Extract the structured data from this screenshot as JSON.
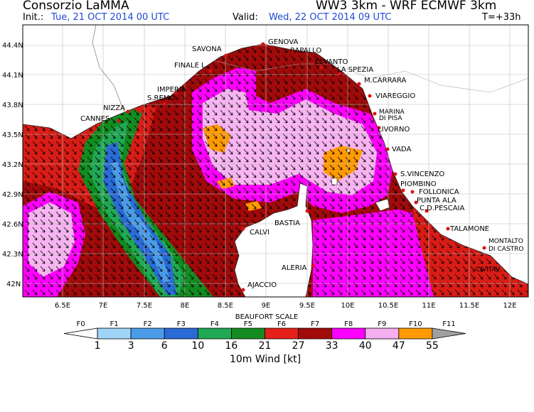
{
  "header": {
    "title_left": "Consorzio LaMMA",
    "init_label": "Init.:",
    "init_value": "Tue, 21 OCT 2014  00 UTC",
    "title_right": "WW3 3km - WRF ECMWF 3km",
    "valid_label": "Valid:",
    "valid_value": "Wed, 22 OCT 2014  09 UTC",
    "forecast_step": "T=+33h"
  },
  "map": {
    "lat_labels": [
      "44.4N",
      "44.1N",
      "43.8N",
      "43.5N",
      "43.2N",
      "42.9N",
      "42.6N",
      "42.3N",
      "42N"
    ],
    "lon_labels": [
      "6.5E",
      "7E",
      "7.5E",
      "8E",
      "8.5E",
      "9E",
      "9.5E",
      "10E",
      "10.5E",
      "11E",
      "11.5E",
      "12E"
    ],
    "places": [
      {
        "name": "GENOVA"
      },
      {
        "name": "RAPALLO"
      },
      {
        "name": "SAVONA"
      },
      {
        "name": "LEVANTO"
      },
      {
        "name": "LA SPEZIA"
      },
      {
        "name": "FINALE L."
      },
      {
        "name": "M.CARRARA"
      },
      {
        "name": "IMPERIA"
      },
      {
        "name": "S.REMO"
      },
      {
        "name": "VIAREGGIO"
      },
      {
        "name": "NIZZA"
      },
      {
        "name": "MARINA"
      },
      {
        "name": "DI PISA"
      },
      {
        "name": "CANNES"
      },
      {
        "name": "LIVORNO"
      },
      {
        "name": "VADA"
      },
      {
        "name": "S.VINCENZO"
      },
      {
        "name": "PIOMBINO"
      },
      {
        "name": "FOLLONICA"
      },
      {
        "name": "PUNTA ALA"
      },
      {
        "name": "C.D.PESCAIA"
      },
      {
        "name": "BASTIA"
      },
      {
        "name": "CALVI"
      },
      {
        "name": "TALAMONE"
      },
      {
        "name": "MONTALTO"
      },
      {
        "name": "DI CASTRO"
      },
      {
        "name": "ALERIA"
      },
      {
        "name": "CIVITAV."
      },
      {
        "name": "AJACCIO"
      }
    ]
  },
  "legend": {
    "title": "BEAUFORT SCALE",
    "classes": [
      "F0",
      "F1",
      "F2",
      "F3",
      "F4",
      "F5",
      "F6",
      "F7",
      "F8",
      "F9",
      "F10",
      "F11"
    ],
    "thresholds": [
      "1",
      "3",
      "6",
      "10",
      "16",
      "21",
      "27",
      "33",
      "40",
      "47",
      "55"
    ],
    "colors": [
      "#ffffff",
      "#9fd4f6",
      "#4b9ce8",
      "#2a6bd6",
      "#21a854",
      "#138b20",
      "#e5201a",
      "#a30a0a",
      "#ff00ff",
      "#f5aef0",
      "#ff9a00",
      "#a0a0a0"
    ],
    "caption": "10m Wind [kt]"
  },
  "colors": {
    "sea_f6": "#d81c16",
    "sea_f7": "#a00a0a",
    "sea_f8": "#ff00ff",
    "sea_f9": "#f7b4f1",
    "sea_f10": "#ff9a00",
    "land": "#ffffff",
    "date_blue": "#1f49d6"
  }
}
